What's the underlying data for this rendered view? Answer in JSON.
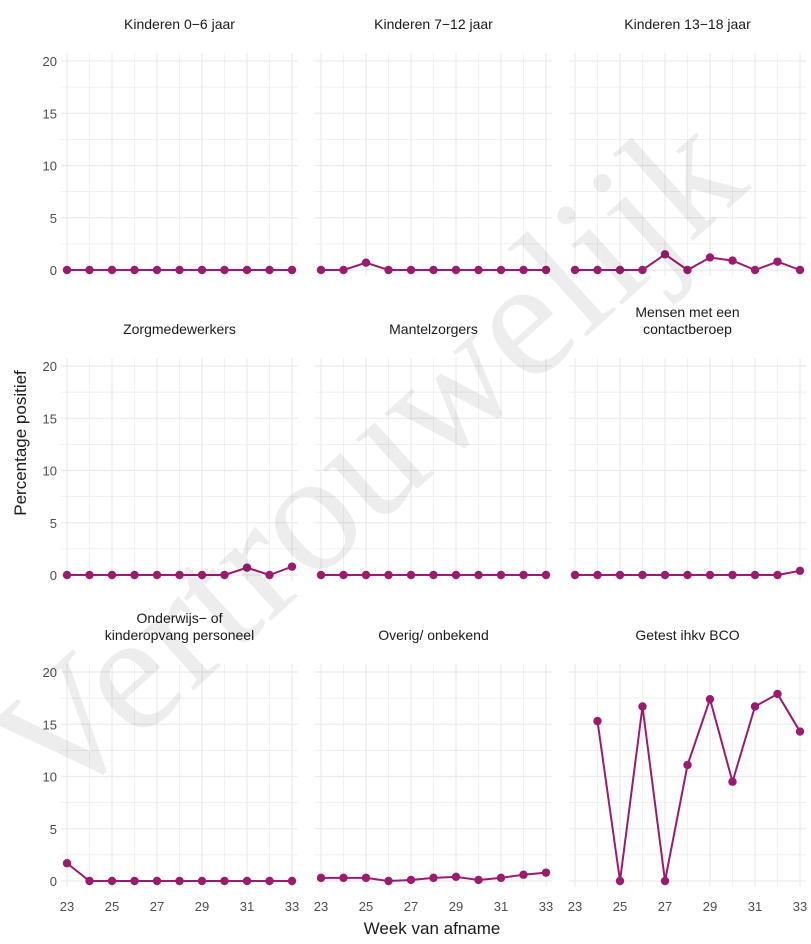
{
  "chart_data": {
    "type": "line",
    "xlabel": "Week van afname",
    "ylabel": "Percentage positief",
    "x_ticks": [
      23,
      25,
      27,
      29,
      31,
      33
    ],
    "y_ticks": [
      0,
      5,
      10,
      15,
      20
    ],
    "xlim": [
      23,
      33
    ],
    "ylim": [
      0,
      20
    ],
    "grid": true,
    "series_color": "#9b1b6e",
    "watermark": "Vertrouwelijk",
    "panels": [
      {
        "title_lines": [
          "Kinderen 0−6 jaar"
        ],
        "x": [
          23,
          24,
          25,
          26,
          27,
          28,
          29,
          30,
          31,
          32,
          33
        ],
        "y": [
          0,
          0,
          0,
          0,
          0,
          0,
          0,
          0,
          0,
          0,
          0
        ]
      },
      {
        "title_lines": [
          "Kinderen 7−12 jaar"
        ],
        "x": [
          23,
          24,
          25,
          26,
          27,
          28,
          29,
          30,
          31,
          32,
          33
        ],
        "y": [
          0,
          0,
          0.7,
          0,
          0,
          0,
          0,
          0,
          0,
          0,
          0
        ]
      },
      {
        "title_lines": [
          "Kinderen 13−18 jaar"
        ],
        "x": [
          23,
          24,
          25,
          26,
          27,
          28,
          29,
          30,
          31,
          32,
          33
        ],
        "y": [
          0,
          0,
          0,
          0,
          1.5,
          0,
          1.2,
          0.9,
          0,
          0.8,
          0
        ]
      },
      {
        "title_lines": [
          "Zorgmedewerkers"
        ],
        "x": [
          23,
          24,
          25,
          26,
          27,
          28,
          29,
          30,
          31,
          32,
          33
        ],
        "y": [
          0,
          0,
          0,
          0,
          0,
          0,
          0,
          0,
          0.7,
          0,
          0.8
        ]
      },
      {
        "title_lines": [
          "Mantelzorgers"
        ],
        "x": [
          23,
          24,
          25,
          26,
          27,
          28,
          29,
          30,
          31,
          32,
          33
        ],
        "y": [
          0,
          0,
          0,
          0,
          0,
          0,
          0,
          0,
          0,
          0,
          0
        ]
      },
      {
        "title_lines": [
          "Mensen met een",
          "contactberoep"
        ],
        "x": [
          23,
          24,
          25,
          26,
          27,
          28,
          29,
          30,
          31,
          32,
          33
        ],
        "y": [
          0,
          0,
          0,
          0,
          0,
          0,
          0,
          0,
          0,
          0,
          0.4
        ]
      },
      {
        "title_lines": [
          "Onderwijs− of",
          "kinderopvang personeel"
        ],
        "x": [
          23,
          24,
          25,
          26,
          27,
          28,
          29,
          30,
          31,
          32,
          33
        ],
        "y": [
          1.7,
          0,
          0,
          0,
          0,
          0,
          0,
          0,
          0,
          0,
          0
        ]
      },
      {
        "title_lines": [
          "Overig/ onbekend"
        ],
        "x": [
          23,
          24,
          25,
          26,
          27,
          28,
          29,
          30,
          31,
          32,
          33
        ],
        "y": [
          0.3,
          0.3,
          0.3,
          0,
          0.1,
          0.3,
          0.4,
          0.1,
          0.3,
          0.6,
          0.8
        ]
      },
      {
        "title_lines": [
          "Getest ihkv BCO"
        ],
        "x": [
          24,
          25,
          26,
          27,
          28,
          29,
          30,
          31,
          32,
          33
        ],
        "y": [
          15.3,
          0,
          16.7,
          0,
          11.1,
          17.4,
          9.5,
          16.7,
          17.9,
          14.3
        ]
      }
    ]
  }
}
